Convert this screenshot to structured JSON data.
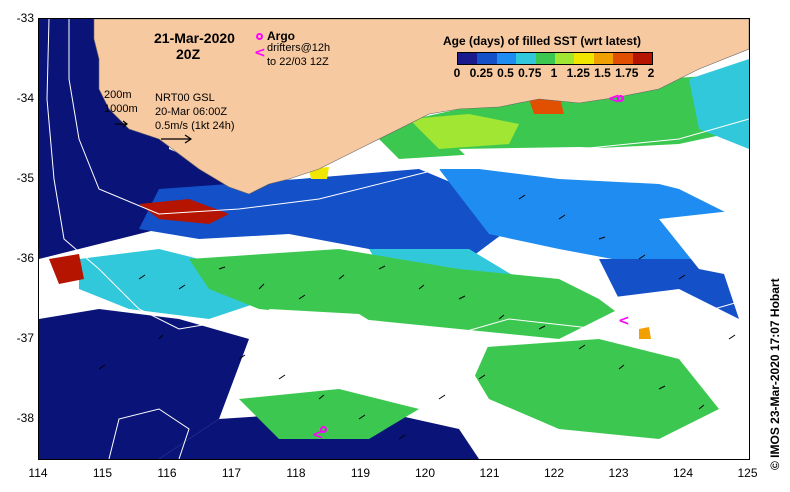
{
  "map": {
    "date": "21-Mar-2020",
    "time": "20Z",
    "argo_label": "Argo",
    "drifters_line1": "drifters@12h",
    "drifters_line2": "to 22/03 12Z",
    "contour_200": "200m",
    "contour_1000": "1000m",
    "model_line1": "NRT00 GSL",
    "model_line2": "20-Mar 06:00Z",
    "model_line3": "0.5m/s (1kt 24h)",
    "credit": "© IMOS 23-Mar-2020 17:07 Hobart",
    "lat_ticks": [
      "-33",
      "-34",
      "-35",
      "-36",
      "-37",
      "-38"
    ],
    "lon_ticks": [
      "114",
      "115",
      "116",
      "117",
      "118",
      "119",
      "120",
      "121",
      "122",
      "123",
      "124",
      "125"
    ],
    "lat_range": [
      -38.5,
      -33
    ],
    "lon_range": [
      114,
      125
    ]
  },
  "legend": {
    "title": "Age (days) of filled SST (wrt latest)",
    "ticks": [
      "0",
      "0.25",
      "0.5",
      "0.75",
      "1",
      "1.25",
      "1.5",
      "1.75",
      "2"
    ],
    "colors": [
      "#1a1a8c",
      "#1450c8",
      "#1e8cf0",
      "#32c8dc",
      "#3cc850",
      "#a0e632",
      "#f0e600",
      "#f0a000",
      "#e05000",
      "#b41400"
    ]
  },
  "colors": {
    "land": "#f7c9a0",
    "deep_ocean": "#0a1478",
    "no_data": "#ffffff",
    "argo": "#ff00ff"
  }
}
